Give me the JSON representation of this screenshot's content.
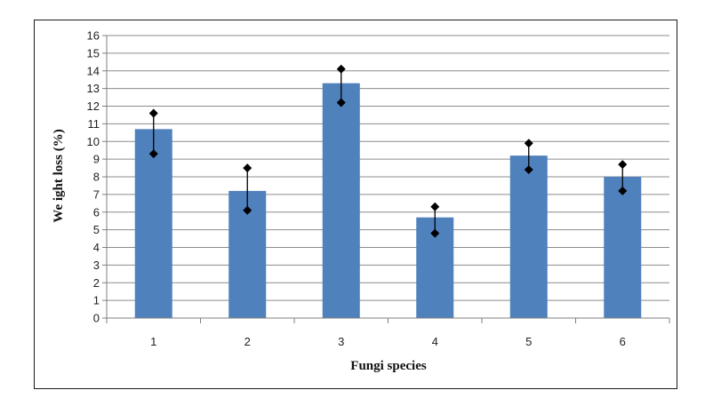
{
  "chart_data": {
    "type": "bar",
    "title": "",
    "xlabel": "Fungi species",
    "ylabel": "We ight loss (%)",
    "categories": [
      "1",
      "2",
      "3",
      "4",
      "5",
      "6"
    ],
    "series": [
      {
        "values": [
          10.7,
          7.2,
          13.3,
          5.7,
          9.2,
          8.0
        ],
        "error_high": [
          11.6,
          8.5,
          14.1,
          6.3,
          9.9,
          8.7
        ],
        "error_low": [
          9.3,
          6.1,
          12.2,
          4.8,
          8.4,
          7.2
        ]
      }
    ],
    "ylim": [
      0,
      16
    ],
    "yticks": [
      "0",
      "1",
      "2",
      "3",
      "4",
      "5",
      "6",
      "7",
      "8",
      "9",
      "10",
      "11",
      "12",
      "13",
      "14",
      "15",
      "16"
    ],
    "grid": true,
    "legend": "none",
    "bar_color": "#4f81bd",
    "grid_color": "#8c8c8c",
    "error_color": "#000000"
  }
}
